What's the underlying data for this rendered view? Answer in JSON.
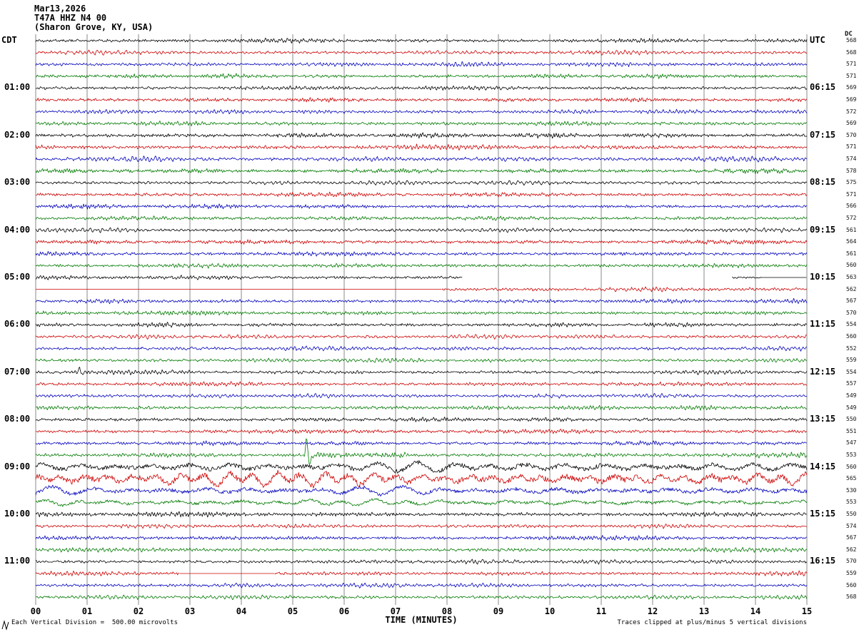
{
  "title": {
    "date": "Mar13,2026",
    "station": "T47A HHZ N4 00",
    "location": "(Sharon Grove, KY, USA)"
  },
  "axis": {
    "left_header": "CDT",
    "right_header": "UTC",
    "dc_header": "DC",
    "x_label": "TIME (MINUTES)"
  },
  "footer": {
    "left": "Each Vertical Division =  500.00 microvolts",
    "right": "Traces clipped at plus/minus 5 vertical divisions"
  },
  "colors": {
    "black": "#000000",
    "red": "#cc0000",
    "blue": "#0000bb",
    "green": "#007a00",
    "grid": "#8a8a8a"
  },
  "chart_data": {
    "type": "line",
    "subtype": "helicorder-seismogram",
    "x_range_minutes": [
      0,
      15
    ],
    "minutes_per_row": 15,
    "rows_total": 48,
    "trace_color_cycle": [
      "black",
      "red",
      "blue",
      "green"
    ],
    "x_ticks": [
      "00",
      "01",
      "02",
      "03",
      "04",
      "05",
      "06",
      "07",
      "08",
      "09",
      "10",
      "11",
      "12",
      "13",
      "14",
      "15"
    ],
    "microvolts_per_division": "500.00",
    "clip_note": "plus/minus 5 vertical divisions",
    "rows": [
      {
        "color": "black",
        "dc": 568
      },
      {
        "color": "red",
        "dc": 568
      },
      {
        "color": "blue",
        "dc": 571
      },
      {
        "color": "green",
        "dc": 571
      },
      {
        "cdt": "01:00",
        "utc": "06:15",
        "color": "black",
        "dc": 569
      },
      {
        "color": "red",
        "dc": 569
      },
      {
        "color": "blue",
        "dc": 572
      },
      {
        "color": "green",
        "dc": 569
      },
      {
        "cdt": "02:00",
        "utc": "07:15",
        "color": "black",
        "dc": 570,
        "amp": 1.15
      },
      {
        "color": "red",
        "dc": 571,
        "amp": 1.15
      },
      {
        "color": "blue",
        "dc": 574,
        "amp": 1.15
      },
      {
        "color": "green",
        "dc": 578,
        "amp": 1.15
      },
      {
        "cdt": "03:00",
        "utc": "08:15",
        "color": "black",
        "dc": 575
      },
      {
        "color": "red",
        "dc": 571
      },
      {
        "color": "blue",
        "dc": 566
      },
      {
        "color": "green",
        "dc": 572
      },
      {
        "cdt": "04:00",
        "utc": "09:15",
        "color": "black",
        "dc": 561
      },
      {
        "color": "red",
        "dc": 564
      },
      {
        "color": "blue",
        "dc": 561
      },
      {
        "color": "green",
        "dc": 560
      },
      {
        "cdt": "05:00",
        "utc": "10:15",
        "color": "black",
        "dc": 563,
        "seg": [
          {
            "s": 0,
            "e": 8.3,
            "t": "n"
          },
          {
            "s": 8.3,
            "e": 13.55,
            "t": "g"
          },
          {
            "s": 13.55,
            "e": 14.15,
            "t": "n",
            "a": 0.6
          },
          {
            "s": 14.15,
            "e": 15,
            "t": "f"
          }
        ]
      },
      {
        "color": "red",
        "dc": 562,
        "seg": [
          {
            "s": 0,
            "e": 7.9,
            "t": "f"
          },
          {
            "s": 7.9,
            "e": 15,
            "t": "n"
          }
        ]
      },
      {
        "color": "blue",
        "dc": 567
      },
      {
        "color": "green",
        "dc": 570
      },
      {
        "cdt": "06:00",
        "utc": "11:15",
        "color": "black",
        "dc": 554
      },
      {
        "color": "red",
        "dc": 560
      },
      {
        "color": "blue",
        "dc": 552
      },
      {
        "color": "green",
        "dc": 559
      },
      {
        "cdt": "07:00",
        "utc": "12:15",
        "color": "black",
        "dc": 554,
        "spikes": [
          {
            "t": 0.85,
            "a": 8
          }
        ]
      },
      {
        "color": "red",
        "dc": 557
      },
      {
        "color": "blue",
        "dc": 549
      },
      {
        "color": "green",
        "dc": 549
      },
      {
        "cdt": "08:00",
        "utc": "13:15",
        "color": "black",
        "dc": 550
      },
      {
        "color": "red",
        "dc": 551
      },
      {
        "color": "blue",
        "dc": 547
      },
      {
        "color": "green",
        "dc": 553,
        "seg": [
          {
            "s": 0,
            "e": 5.2,
            "t": "n"
          },
          {
            "s": 5.2,
            "e": 7.2,
            "t": "n",
            "a": 1.9
          },
          {
            "s": 7.2,
            "e": 15,
            "t": "n",
            "a": 1.1
          }
        ],
        "spikes": [
          {
            "t": 5.27,
            "a": 26
          }
        ]
      },
      {
        "cdt": "09:00",
        "utc": "14:15",
        "color": "black",
        "dc": 560,
        "amp": 2.0,
        "lf": true
      },
      {
        "color": "red",
        "dc": 565,
        "amp": 2.6,
        "lf": true
      },
      {
        "color": "blue",
        "dc": 530,
        "amp": 1.7,
        "lf": true
      },
      {
        "color": "green",
        "dc": 553,
        "amp": 1.3,
        "lf": true
      },
      {
        "cdt": "10:00",
        "utc": "15:15",
        "color": "black",
        "dc": 550,
        "amp": 1.2
      },
      {
        "color": "red",
        "dc": 574
      },
      {
        "color": "blue",
        "dc": 567
      },
      {
        "color": "green",
        "dc": 562
      },
      {
        "cdt": "11:00",
        "utc": "16:15",
        "color": "black",
        "dc": 570
      },
      {
        "color": "red",
        "dc": 559,
        "seg": [
          {
            "s": 0,
            "e": 2.8,
            "t": "n"
          },
          {
            "s": 2.8,
            "e": 4.65,
            "t": "f"
          },
          {
            "s": 4.65,
            "e": 15,
            "t": "n"
          }
        ]
      },
      {
        "color": "blue",
        "dc": 560
      },
      {
        "color": "green",
        "dc": 568
      }
    ]
  }
}
